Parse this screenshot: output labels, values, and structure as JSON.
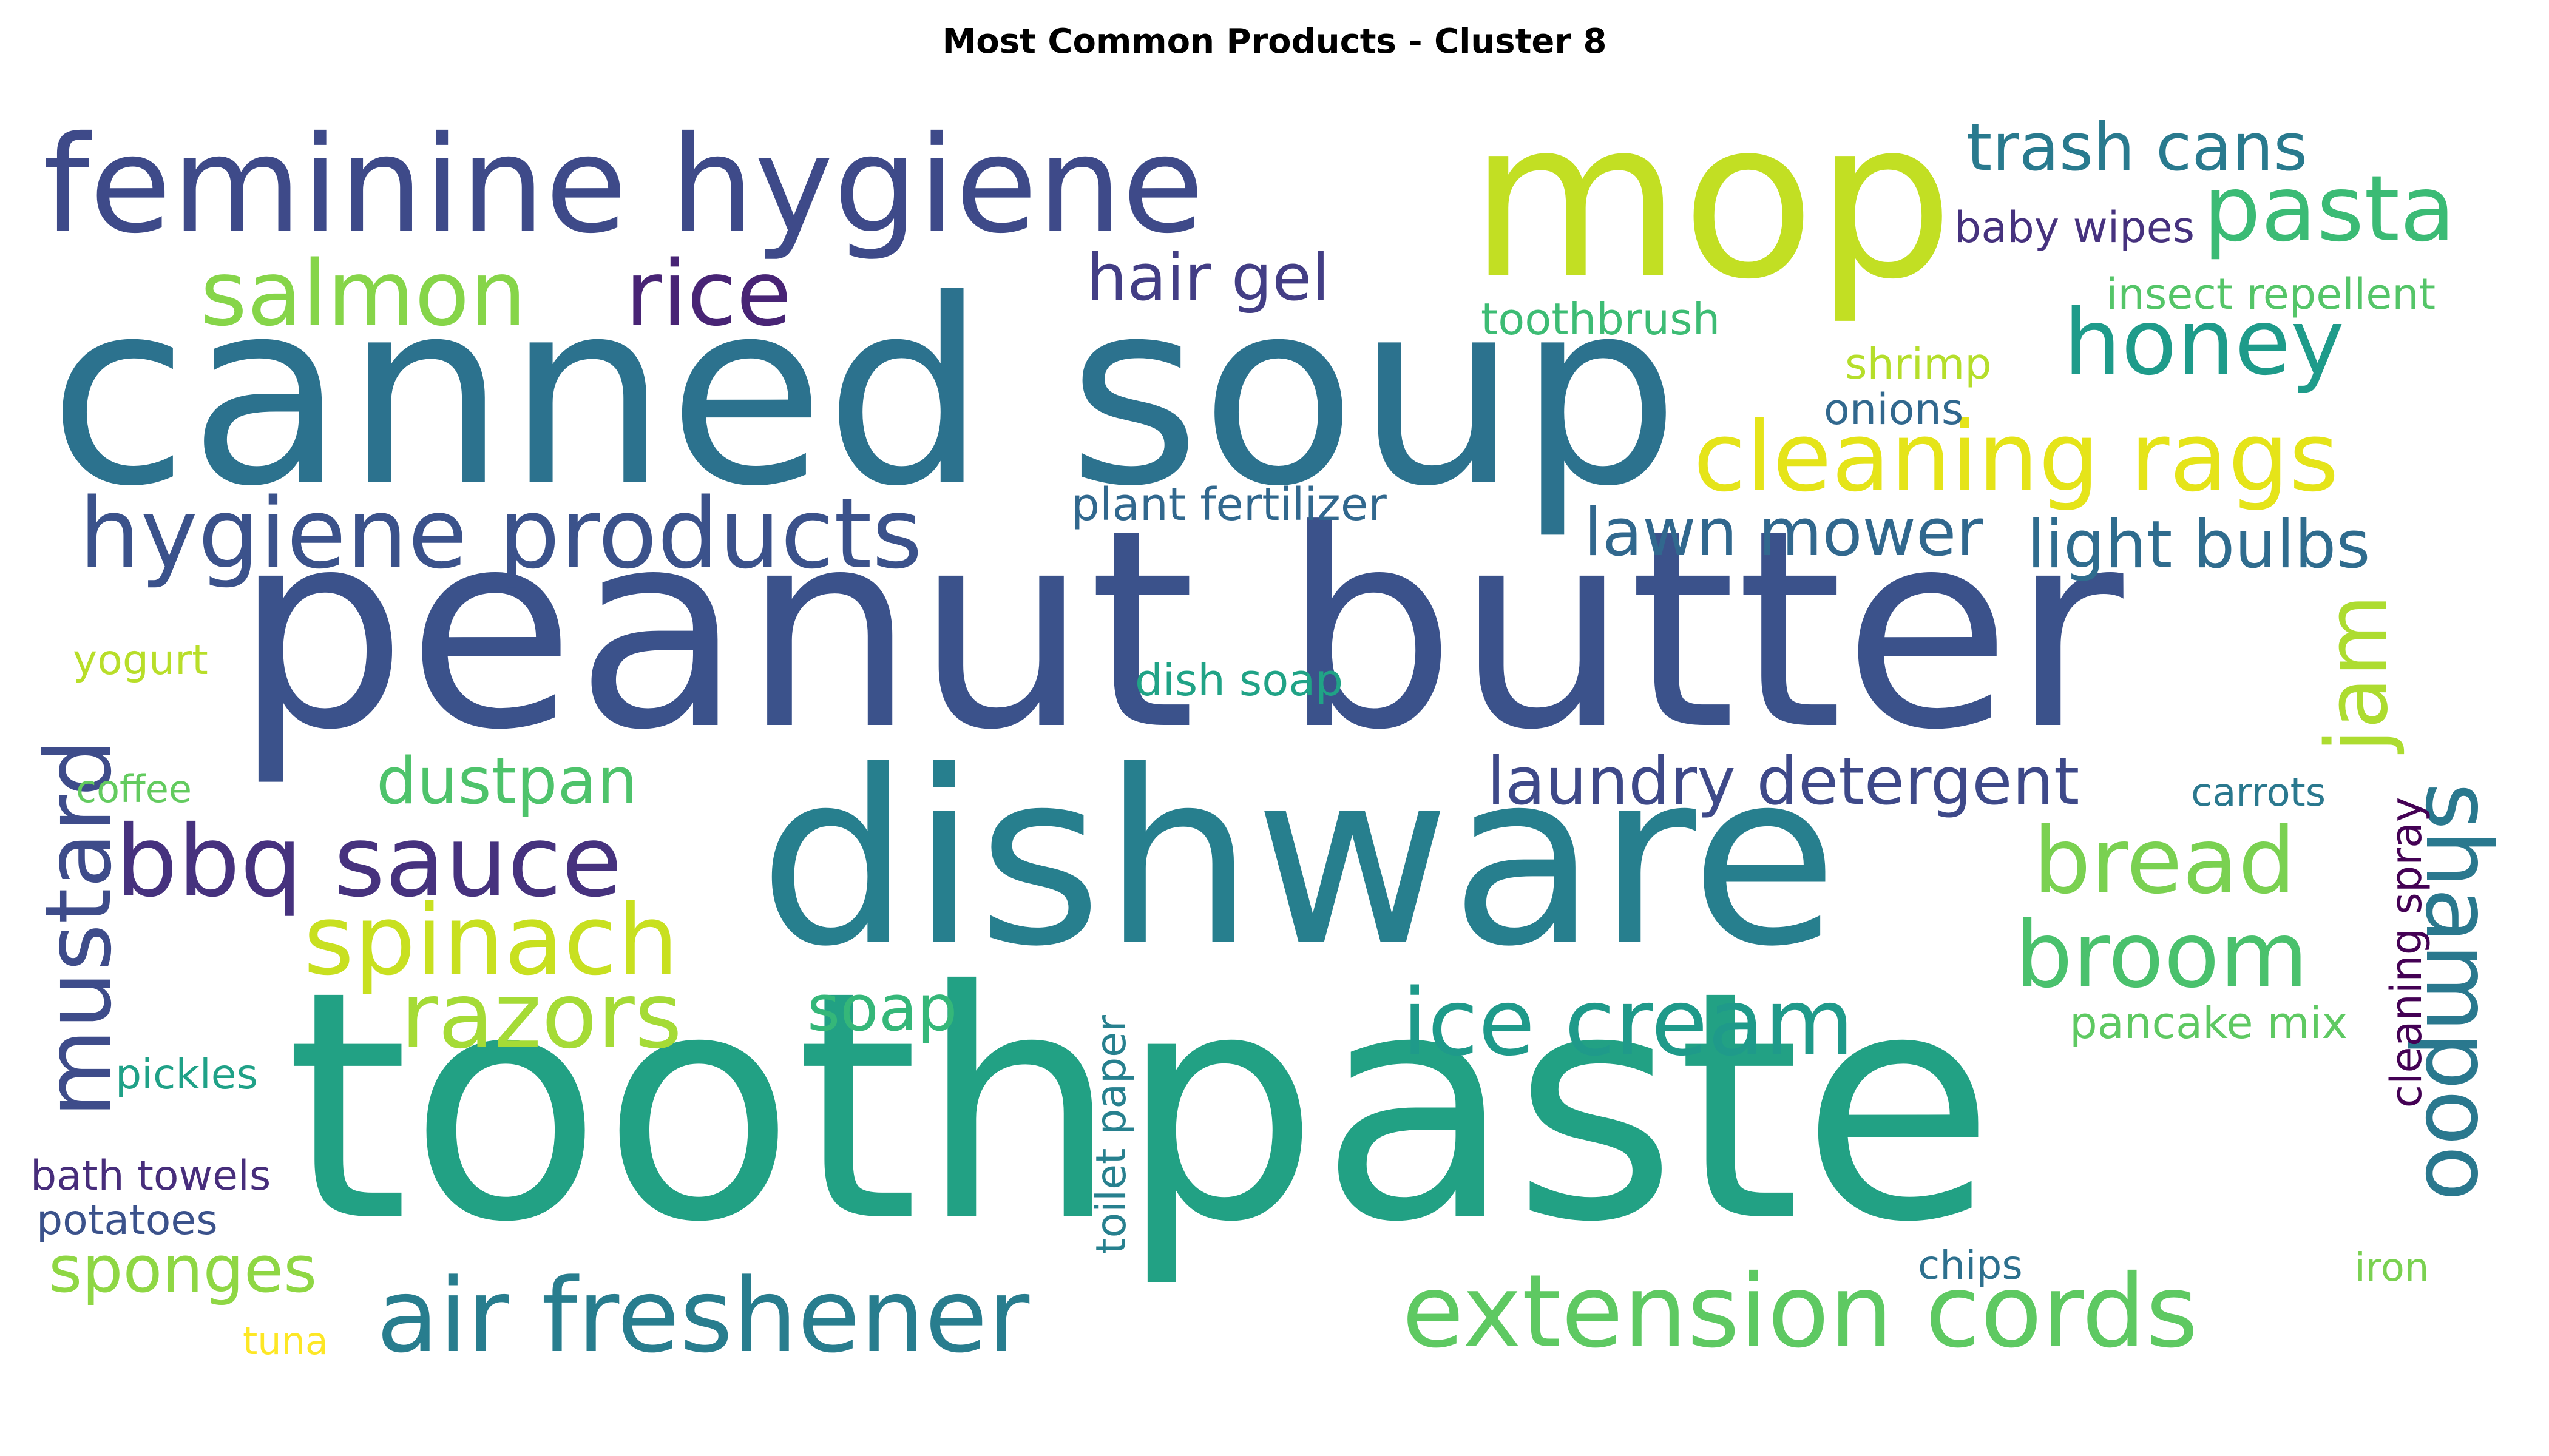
{
  "title": "Most Common Products - Cluster 8",
  "words": [
    {
      "text": "toothpaste",
      "color": "#22a184"
    },
    {
      "text": "peanut butter",
      "color": "#3b528b"
    },
    {
      "text": "canned soup",
      "color": "#2c728e"
    },
    {
      "text": "dishware",
      "color": "#277f8e"
    },
    {
      "text": "mop",
      "color": "#c2df23"
    },
    {
      "text": "feminine hygiene",
      "color": "#3e4a89"
    },
    {
      "text": "extension cords",
      "color": "#5ec962"
    },
    {
      "text": "air freshener",
      "color": "#287d8e"
    },
    {
      "text": "hygiene products",
      "color": "#3b528b"
    },
    {
      "text": "cleaning rags",
      "color": "#e5e419"
    },
    {
      "text": "bbq sauce",
      "color": "#46327e"
    },
    {
      "text": "spinach",
      "color": "#c8e020"
    },
    {
      "text": "ice cream",
      "color": "#1f9a8a"
    },
    {
      "text": "razors",
      "color": "#a5db36"
    },
    {
      "text": "mustard",
      "color": "#3e4c8a"
    },
    {
      "text": "shampoo",
      "color": "#2a788e"
    },
    {
      "text": "bread",
      "color": "#7ad151"
    },
    {
      "text": "broom",
      "color": "#4ac16d"
    },
    {
      "text": "pasta",
      "color": "#3bbb75"
    },
    {
      "text": "honey",
      "color": "#1e9b8a"
    },
    {
      "text": "salmon",
      "color": "#86d549"
    },
    {
      "text": "rice",
      "color": "#482475"
    },
    {
      "text": "jam",
      "color": "#addc30"
    },
    {
      "text": "laundry detergent",
      "color": "#3e4989"
    },
    {
      "text": "trash cans",
      "color": "#297a8e"
    },
    {
      "text": "lawn mower",
      "color": "#31688e"
    },
    {
      "text": "light bulbs",
      "color": "#2f6c8e"
    },
    {
      "text": "hair gel",
      "color": "#433e85"
    },
    {
      "text": "dustpan",
      "color": "#4ec36b"
    },
    {
      "text": "sponges",
      "color": "#8fd744"
    },
    {
      "text": "soap",
      "color": "#35b779"
    },
    {
      "text": "plant fertilizer",
      "color": "#31688e"
    },
    {
      "text": "pancake mix",
      "color": "#5ec962"
    },
    {
      "text": "dish soap",
      "color": "#20a386"
    },
    {
      "text": "toothbrush",
      "color": "#3dbc74"
    },
    {
      "text": "insect repellent",
      "color": "#54c568"
    },
    {
      "text": "baby wipes",
      "color": "#46327e"
    },
    {
      "text": "cleaning spray",
      "color": "#440154"
    },
    {
      "text": "toilet paper",
      "color": "#27808e"
    },
    {
      "text": "shrimp",
      "color": "#b5de2b"
    },
    {
      "text": "onions",
      "color": "#31688e"
    },
    {
      "text": "pickles",
      "color": "#1fa187"
    },
    {
      "text": "bath towels",
      "color": "#472d7b"
    },
    {
      "text": "potatoes",
      "color": "#3b528b"
    },
    {
      "text": "yogurt",
      "color": "#b8de29"
    },
    {
      "text": "coffee",
      "color": "#63cb5f"
    },
    {
      "text": "carrots",
      "color": "#2a788e"
    },
    {
      "text": "chips",
      "color": "#2d708e"
    },
    {
      "text": "iron",
      "color": "#7ad151"
    },
    {
      "text": "tuna",
      "color": "#fde725"
    }
  ]
}
